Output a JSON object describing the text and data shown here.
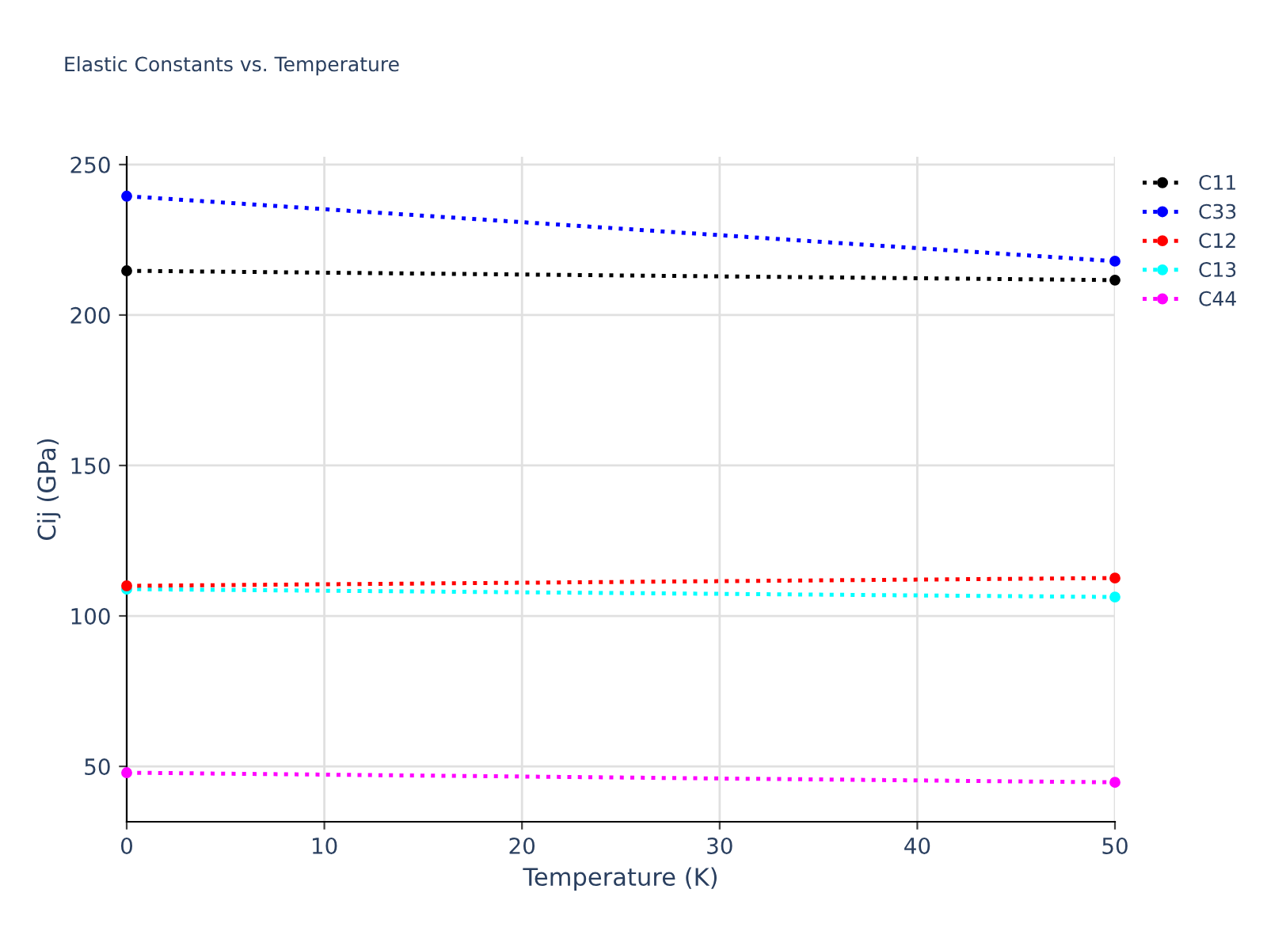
{
  "chart_data": {
    "type": "line",
    "title": "Elastic Constants vs. Temperature",
    "xlabel": "Temperature (K)",
    "ylabel": "Cij (GPa)",
    "x": [
      0,
      50
    ],
    "series": [
      {
        "name": "C11",
        "color": "#000000",
        "values": [
          214.7,
          211.6
        ]
      },
      {
        "name": "C33",
        "color": "#0000ff",
        "values": [
          239.5,
          217.9
        ]
      },
      {
        "name": "C12",
        "color": "#ff0000",
        "values": [
          110.0,
          112.6
        ]
      },
      {
        "name": "C13",
        "color": "#00ffff",
        "values": [
          108.9,
          106.3
        ]
      },
      {
        "name": "C44",
        "color": "#ff00ff",
        "values": [
          47.9,
          44.7
        ]
      }
    ],
    "xlim": [
      0,
      50
    ],
    "xticks": [
      0,
      10,
      20,
      30,
      40,
      50
    ],
    "ylim": [
      31.6,
      252.6
    ],
    "yticks": [
      50,
      100,
      150,
      200,
      250
    ],
    "grid": true,
    "legend": "top right",
    "marker": "circle",
    "line_style": "dotted"
  }
}
